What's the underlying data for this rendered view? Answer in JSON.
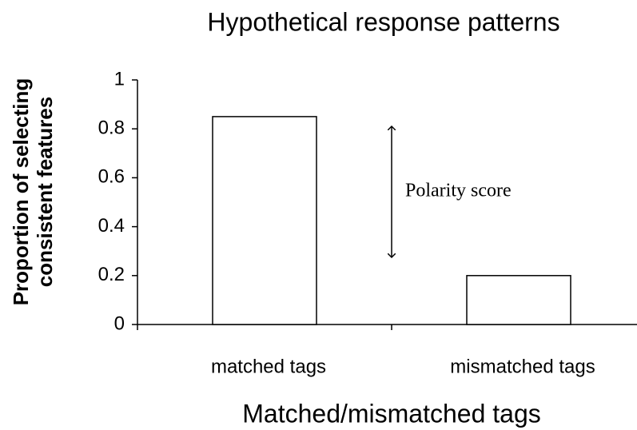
{
  "chart_data": {
    "type": "bar",
    "title": "Hypothetical response patterns",
    "x_label": "Matched/mismatched tags",
    "y_label": [
      "Proportion of selecting",
      "consistent features"
    ],
    "categories": [
      "matched tags",
      "mismatched tags"
    ],
    "values": [
      0.85,
      0.2
    ],
    "color": "#ffffff",
    "ylim": [
      0,
      1
    ],
    "yticks": [
      0,
      0.2,
      0.4,
      0.6,
      0.8,
      1
    ],
    "grid": false,
    "annotation": "Polarity score"
  }
}
